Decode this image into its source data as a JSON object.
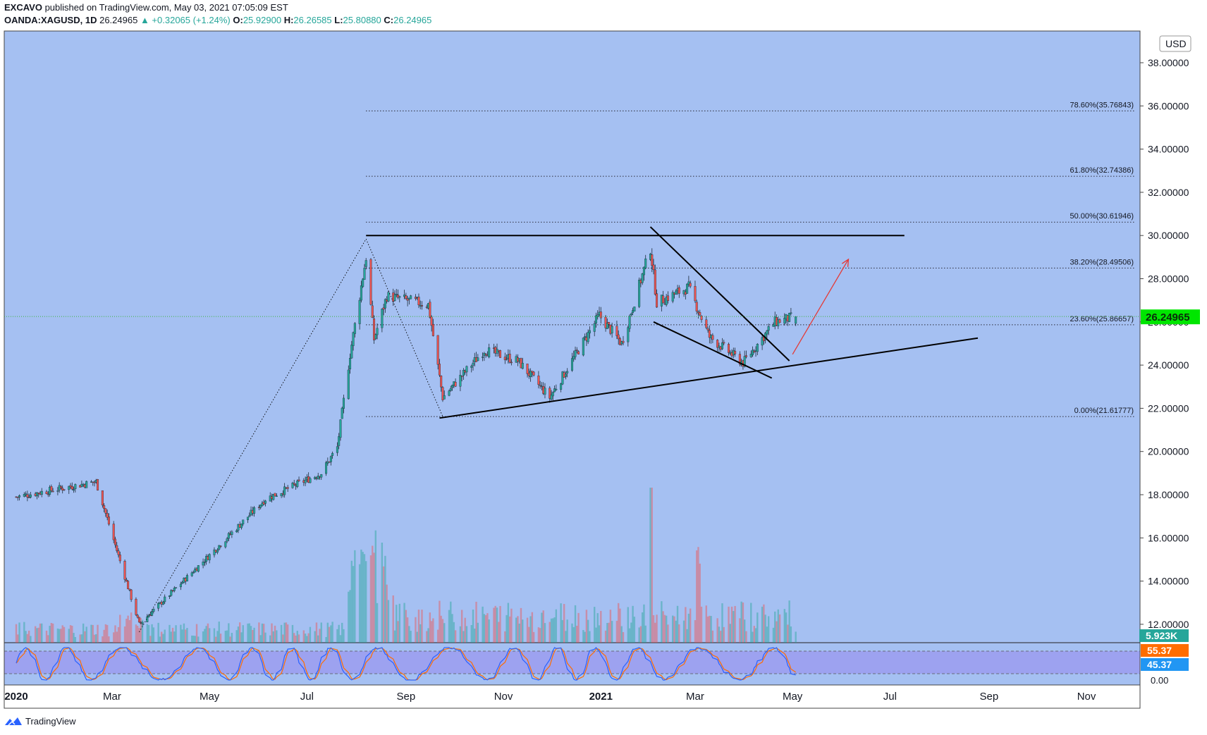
{
  "header": {
    "author": "EXCAVO",
    "published_text": "published on TradingView.com, May 03, 2021 07:05:09 EST",
    "symbol": "OANDA:XAGUSD, 1D",
    "last": "26.24965",
    "change": "▲ +0.32065 (+1.24%)",
    "o_label": "O:",
    "o": "25.92900",
    "h_label": "H:",
    "h": "26.26585",
    "l_label": "L:",
    "l": "25.80880",
    "c_label": "C:",
    "c": "26.24965"
  },
  "footer": {
    "brand": "TradingView"
  },
  "colors": {
    "plot_bg": "#a5c0f2",
    "up": "#26a69a",
    "down": "#ef5350",
    "osc_band": "#9b9cf0",
    "k_line": "#2962ff",
    "d_line": "#ff6d00",
    "price_badge": "#00e600",
    "arrow": "#e53935"
  },
  "chart_data": {
    "type": "candlestick",
    "instrument": "OANDA:XAGUSD",
    "timeframe": "1D",
    "currency_label": "USD",
    "y_ticks": [
      "38.00000",
      "36.00000",
      "34.00000",
      "32.00000",
      "30.00000",
      "28.00000",
      "26.00000",
      "24.00000",
      "22.00000",
      "20.00000",
      "18.00000",
      "16.00000",
      "14.00000",
      "12.00000"
    ],
    "ylim": [
      10.9,
      39.3
    ],
    "x_ticks": [
      "2020",
      "Mar",
      "May",
      "Jul",
      "Sep",
      "Nov",
      "2021",
      "Mar",
      "May",
      "Jul",
      "Sep",
      "Nov"
    ],
    "last_price_badge": "26.24965",
    "volume_badge": "5.923K",
    "fib_levels": [
      {
        "label": "78.60%(35.76843)",
        "value": 35.76843
      },
      {
        "label": "61.80%(32.74386)",
        "value": 32.74386
      },
      {
        "label": "50.00%(30.61946)",
        "value": 30.61946
      },
      {
        "label": "38.20%(28.49506)",
        "value": 28.49506
      },
      {
        "label": "23.60%(25.86657)",
        "value": 25.86657
      },
      {
        "label": "0.00%(21.61777)",
        "value": 21.61777
      }
    ],
    "price_anchors": [
      {
        "date": "2020-01-01",
        "price": 17.9
      },
      {
        "date": "2020-02-20",
        "price": 18.6
      },
      {
        "date": "2020-03-18",
        "price": 12.0
      },
      {
        "date": "2020-05-01",
        "price": 15.2
      },
      {
        "date": "2020-06-05",
        "price": 17.8
      },
      {
        "date": "2020-07-10",
        "price": 19.0
      },
      {
        "date": "2020-07-20",
        "price": 20.2
      },
      {
        "date": "2020-07-28",
        "price": 24.5
      },
      {
        "date": "2020-08-07",
        "price": 29.0
      },
      {
        "date": "2020-08-12",
        "price": 25.2
      },
      {
        "date": "2020-08-20",
        "price": 27.2
      },
      {
        "date": "2020-09-15",
        "price": 26.8
      },
      {
        "date": "2020-09-24",
        "price": 22.5
      },
      {
        "date": "2020-10-20",
        "price": 24.7
      },
      {
        "date": "2020-11-10",
        "price": 24.2
      },
      {
        "date": "2020-11-30",
        "price": 22.5
      },
      {
        "date": "2020-12-31",
        "price": 26.3
      },
      {
        "date": "2021-01-14",
        "price": 25.0
      },
      {
        "date": "2021-02-01",
        "price": 29.4
      },
      {
        "date": "2021-02-05",
        "price": 26.9
      },
      {
        "date": "2021-02-25",
        "price": 27.6
      },
      {
        "date": "2021-03-10",
        "price": 25.3
      },
      {
        "date": "2021-03-31",
        "price": 24.1
      },
      {
        "date": "2021-04-20",
        "price": 26.0
      },
      {
        "date": "2021-05-03",
        "price": 26.25
      }
    ],
    "volume_spike_dates": [
      "2020-08-06",
      "2020-08-10",
      "2020-08-12",
      "2021-02-01",
      "2021-03-03"
    ],
    "trendlines": [
      {
        "name": "resistance",
        "from": {
          "date": "2020-08-07",
          "price": 30.0
        },
        "to": {
          "date": "2021-07-10",
          "price": 30.0
        }
      },
      {
        "name": "support",
        "from": {
          "date": "2020-09-22",
          "price": 21.55
        },
        "to": {
          "date": "2021-08-25",
          "price": 25.25
        }
      },
      {
        "name": "wedge-upper",
        "from": {
          "date": "2021-02-01",
          "price": 30.4
        },
        "to": {
          "date": "2021-04-29",
          "price": 24.2
        }
      },
      {
        "name": "wedge-lower",
        "from": {
          "date": "2021-02-03",
          "price": 26.0
        },
        "to": {
          "date": "2021-04-18",
          "price": 23.4
        }
      },
      {
        "name": "fib-leg-up",
        "from": {
          "date": "2020-03-18",
          "price": 11.64
        },
        "to": {
          "date": "2020-08-07",
          "price": 29.84
        }
      },
      {
        "name": "fib-leg-down",
        "from": {
          "date": "2020-08-07",
          "price": 29.84
        },
        "to": {
          "date": "2020-09-24",
          "price": 21.62
        }
      }
    ],
    "projection_arrow": {
      "from": {
        "date": "2021-05-01",
        "price": 24.5
      },
      "to": {
        "date": "2021-06-05",
        "price": 28.9
      }
    },
    "oscillator": {
      "name": "Stochastic RSI",
      "upper_label": "55.37",
      "lower_label": "45.37",
      "zero_label": "0.00"
    }
  }
}
